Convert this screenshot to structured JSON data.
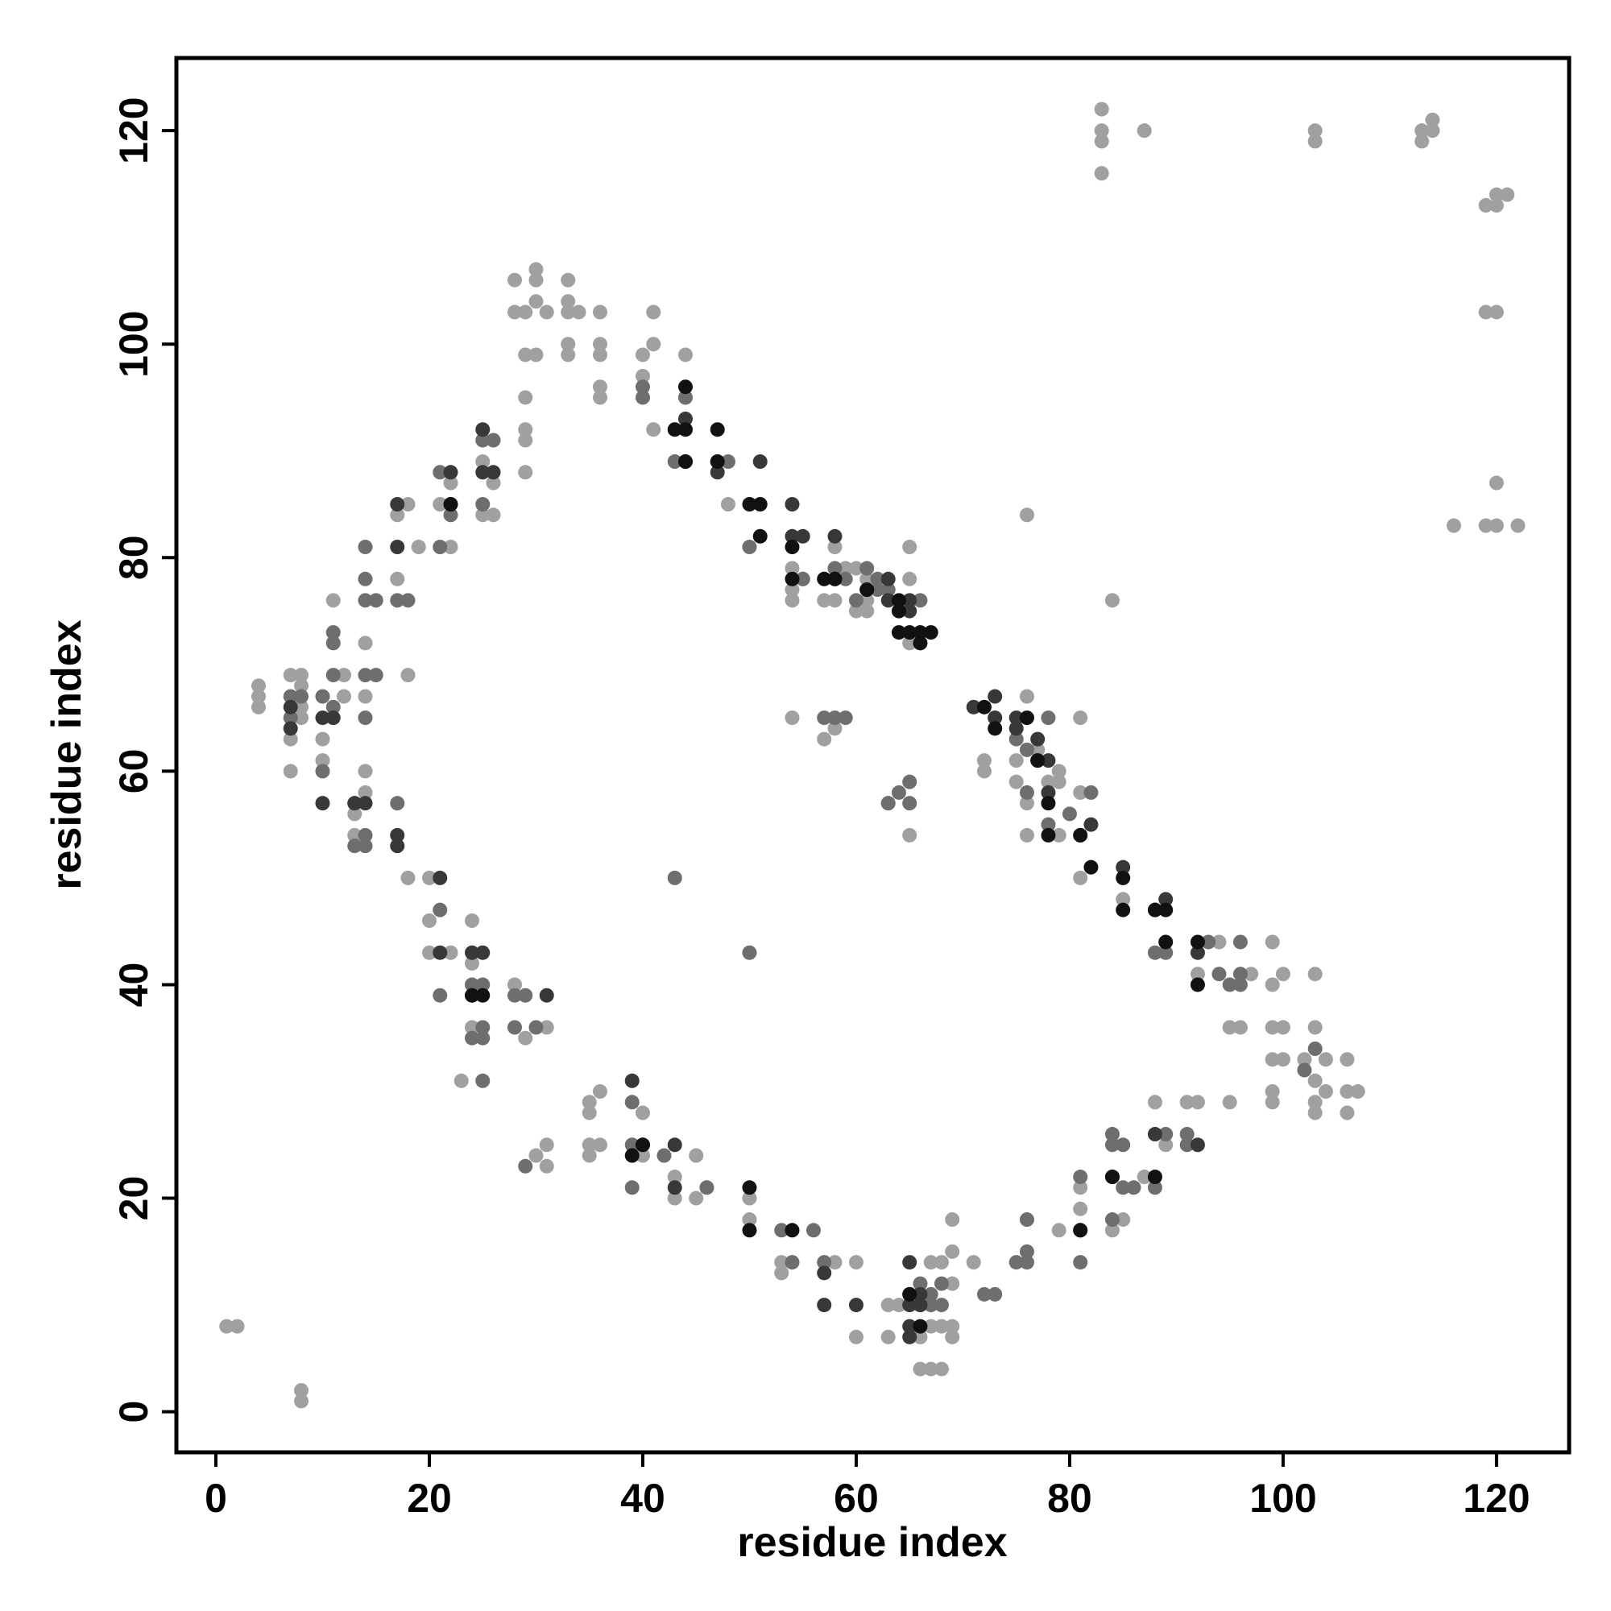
{
  "chart_data": {
    "type": "scatter",
    "x_label": "residue index",
    "y_label": "residue index",
    "xlim": [
      -3.7,
      126.8
    ],
    "ylim": [
      -3.8,
      126.8
    ],
    "xticks": [
      0,
      20,
      40,
      60,
      80,
      100,
      120
    ],
    "yticks": [
      0,
      20,
      40,
      60,
      80,
      100,
      120
    ],
    "series": [
      {
        "color": "#a0a0a0",
        "x": [
          1,
          2,
          8,
          8,
          4,
          4,
          4,
          7,
          7,
          8,
          8,
          8,
          8,
          7,
          10,
          10,
          11,
          12,
          12,
          13,
          13,
          14,
          14,
          14,
          14,
          17,
          17,
          18,
          18,
          19,
          18,
          20,
          20,
          20,
          22,
          22,
          21,
          22,
          24,
          24,
          24,
          23,
          25,
          25,
          26,
          26,
          28,
          28,
          28,
          29,
          29,
          29,
          29,
          29,
          30,
          30,
          30,
          31,
          30,
          29,
          31,
          29,
          30,
          31,
          31,
          33,
          33,
          33,
          33,
          33,
          34,
          36,
          36,
          36,
          36,
          36,
          35,
          35,
          36,
          35,
          35,
          36,
          40,
          40,
          41,
          41,
          41,
          44,
          44,
          40,
          40,
          43,
          43,
          45,
          45,
          46,
          48,
          50,
          50,
          53,
          53,
          54,
          54,
          54,
          55,
          57,
          58,
          58,
          58,
          59,
          60,
          60,
          61,
          60,
          60,
          61,
          61,
          63,
          63,
          64,
          65,
          65,
          65,
          66,
          66,
          67,
          67,
          67,
          66,
          68,
          68,
          68,
          69,
          69,
          69,
          69,
          69,
          71,
          73,
          72,
          72,
          75,
          76,
          75,
          76,
          76,
          76,
          77,
          78,
          79,
          79,
          79,
          79,
          81,
          81,
          81,
          81,
          81,
          84,
          85,
          85,
          84,
          87,
          88,
          89,
          91,
          92,
          92,
          94,
          95,
          95,
          96,
          97,
          99,
          99,
          99,
          99,
          99,
          99,
          100,
          100,
          100,
          102,
          103,
          103,
          103,
          103,
          103,
          104,
          104,
          106,
          106,
          106,
          107,
          83,
          83,
          83,
          83,
          87,
          103,
          103,
          113,
          113,
          114,
          114,
          119,
          120,
          121,
          120,
          119,
          120,
          120,
          116,
          119,
          120,
          122,
          57,
          58,
          54,
          65,
          63
        ],
        "values": [
          8,
          8,
          2,
          1,
          68,
          67,
          66,
          60,
          69,
          69,
          68,
          66,
          65,
          63,
          63,
          61,
          76,
          69,
          67,
          56,
          54,
          72,
          67,
          60,
          58,
          78,
          84,
          85,
          69,
          81,
          50,
          50,
          46,
          43,
          87,
          81,
          85,
          43,
          46,
          42,
          36,
          31,
          89,
          84,
          84,
          87,
          40,
          106,
          103,
          95,
          92,
          91,
          88,
          103,
          107,
          106,
          104,
          103,
          99,
          99,
          36,
          35,
          24,
          23,
          25,
          106,
          104,
          103,
          100,
          99,
          103,
          103,
          100,
          99,
          96,
          95,
          29,
          28,
          30,
          25,
          24,
          25,
          99,
          97,
          100,
          103,
          92,
          99,
          95,
          28,
          24,
          22,
          20,
          24,
          20,
          21,
          85,
          20,
          18,
          14,
          13,
          79,
          77,
          76,
          78,
          76,
          81,
          76,
          14,
          79,
          79,
          75,
          75,
          14,
          7,
          78,
          76,
          10,
          7,
          10,
          81,
          78,
          72,
          7,
          10,
          14,
          8,
          4,
          4,
          4,
          8,
          14,
          18,
          15,
          12,
          8,
          7,
          14,
          65,
          61,
          60,
          61,
          67,
          59,
          57,
          54,
          84,
          62,
          59,
          60,
          59,
          54,
          17,
          65,
          58,
          50,
          21,
          19,
          76,
          48,
          18,
          17,
          22,
          29,
          25,
          29,
          29,
          41,
          44,
          36,
          29,
          36,
          41,
          44,
          40,
          36,
          33,
          30,
          29,
          41,
          36,
          33,
          33,
          41,
          36,
          31,
          29,
          28,
          33,
          30,
          33,
          28,
          30,
          30,
          122,
          120,
          119,
          116,
          120,
          120,
          119,
          120,
          119,
          121,
          120,
          113,
          114,
          114,
          113,
          103,
          103,
          87,
          83,
          83,
          83,
          83,
          63,
          64,
          65,
          54,
          57
        ]
      },
      {
        "color": "#6e6e6e",
        "x": [
          7,
          7,
          8,
          10,
          10,
          11,
          11,
          11,
          11,
          13,
          13,
          14,
          14,
          14,
          14,
          14,
          14,
          14,
          15,
          15,
          17,
          17,
          18,
          21,
          21,
          21,
          21,
          22,
          24,
          24,
          25,
          25,
          25,
          25,
          25,
          25,
          26,
          28,
          28,
          29,
          29,
          30,
          39,
          39,
          39,
          40,
          40,
          42,
          43,
          43,
          44,
          46,
          47,
          48,
          50,
          50,
          53,
          54,
          55,
          56,
          57,
          57,
          58,
          59,
          58,
          59,
          60,
          61,
          62,
          62,
          63,
          63,
          64,
          65,
          65,
          66,
          66,
          67,
          67,
          68,
          68,
          72,
          73,
          75,
          75,
          76,
          76,
          76,
          76,
          76,
          77,
          78,
          78,
          80,
          81,
          81,
          82,
          84,
          84,
          84,
          85,
          85,
          86,
          88,
          88,
          89,
          89,
          91,
          91,
          93,
          94,
          95,
          96,
          96,
          96,
          103,
          102
        ],
        "values": [
          67,
          65,
          67,
          67,
          60,
          73,
          72,
          69,
          66,
          57,
          53,
          81,
          78,
          76,
          69,
          65,
          54,
          53,
          76,
          69,
          57,
          76,
          76,
          81,
          88,
          47,
          39,
          84,
          40,
          35,
          91,
          85,
          40,
          36,
          35,
          31,
          91,
          39,
          36,
          39,
          23,
          36,
          29,
          25,
          21,
          96,
          95,
          24,
          50,
          89,
          95,
          21,
          89,
          89,
          81,
          43,
          17,
          14,
          78,
          17,
          14,
          65,
          65,
          65,
          79,
          78,
          76,
          79,
          78,
          77,
          77,
          57,
          58,
          59,
          57,
          76,
          12,
          11,
          10,
          12,
          10,
          11,
          11,
          14,
          63,
          62,
          58,
          18,
          15,
          14,
          61,
          65,
          55,
          56,
          14,
          22,
          58,
          26,
          25,
          18,
          25,
          21,
          21,
          43,
          21,
          43,
          26,
          26,
          25,
          44,
          41,
          40,
          44,
          41,
          40,
          34,
          32
        ]
      },
      {
        "color": "#383838",
        "x": [
          7,
          7,
          10,
          10,
          11,
          13,
          14,
          17,
          17,
          17,
          17,
          21,
          21,
          22,
          22,
          24,
          24,
          25,
          25,
          25,
          26,
          31,
          39,
          40,
          43,
          43,
          44,
          44,
          47,
          51,
          54,
          54,
          55,
          57,
          57,
          58,
          58,
          60,
          61,
          63,
          63,
          64,
          65,
          65,
          65,
          65,
          65,
          65,
          65,
          66,
          66,
          71,
          73,
          73,
          75,
          75,
          77,
          78,
          78,
          81,
          81,
          82,
          84,
          85,
          88,
          88,
          89,
          92,
          92
        ],
        "values": [
          66,
          64,
          57,
          65,
          65,
          57,
          57,
          54,
          53,
          81,
          85,
          50,
          43,
          88,
          85,
          43,
          39,
          43,
          92,
          88,
          88,
          39,
          31,
          25,
          25,
          21,
          93,
          89,
          88,
          89,
          85,
          82,
          82,
          13,
          10,
          82,
          78,
          10,
          77,
          78,
          76,
          75,
          76,
          75,
          14,
          11,
          10,
          8,
          7,
          10,
          11,
          66,
          67,
          65,
          65,
          64,
          63,
          61,
          58,
          54,
          17,
          55,
          22,
          51,
          47,
          26,
          48,
          43,
          25
        ]
      },
      {
        "color": "#111111",
        "x": [
          22,
          24,
          25,
          39,
          40,
          43,
          44,
          44,
          44,
          47,
          47,
          50,
          51,
          51,
          54,
          54,
          57,
          58,
          61,
          64,
          65,
          66,
          67,
          64,
          66,
          64,
          65,
          66,
          73,
          72,
          76,
          77,
          78,
          78,
          81,
          82,
          84,
          85,
          85,
          88,
          89,
          89,
          92,
          92,
          88,
          50,
          50,
          54,
          81
        ],
        "values": [
          85,
          39,
          39,
          24,
          25,
          92,
          92,
          96,
          89,
          92,
          89,
          85,
          85,
          82,
          81,
          78,
          78,
          78,
          77,
          76,
          73,
          73,
          73,
          73,
          72,
          75,
          11,
          8,
          64,
          66,
          65,
          61,
          57,
          54,
          54,
          51,
          22,
          50,
          47,
          47,
          47,
          44,
          44,
          40,
          22,
          21,
          17,
          17,
          17
        ]
      }
    ]
  }
}
